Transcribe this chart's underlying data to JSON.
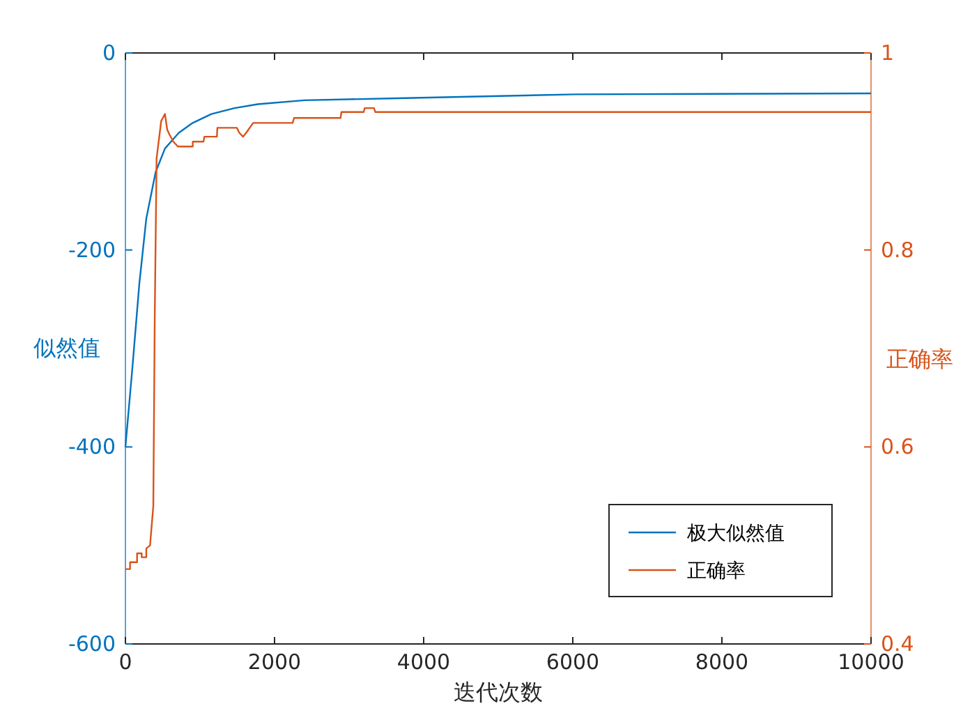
{
  "chart_data": {
    "type": "line",
    "xlabel": "迭代次数",
    "ylabel": "似然值",
    "y2label": "正确率",
    "xlim": [
      0,
      10000
    ],
    "xticks": [
      0,
      2000,
      4000,
      6000,
      8000,
      10000
    ],
    "ylim": [
      -600,
      0
    ],
    "yticks": [
      -600,
      -400,
      -200,
      0
    ],
    "y2lim": [
      0.4,
      1
    ],
    "y2ticks": [
      0.4,
      0.6,
      0.8,
      1
    ],
    "legend": "bottom right",
    "grid": false,
    "series": [
      {
        "name": "极大似然值",
        "color": "#0072bd",
        "axis": "y",
        "x": [
          0,
          93,
          187,
          280,
          405,
          530,
          717,
          903,
          1153,
          1464,
          1776,
          2399,
          3645,
          6037,
          10000
        ],
        "values": [
          -400,
          -320,
          -234,
          -168,
          -121,
          -97,
          -81,
          -71,
          -62,
          -56,
          -52,
          -48,
          -46,
          -42,
          -41
        ]
      },
      {
        "name": "正确率",
        "color": "#d95319",
        "axis": "y2",
        "x": [
          0,
          62,
          62,
          156,
          156,
          218,
          218,
          280,
          280,
          330,
          374,
          393,
          418,
          480,
          530,
          561,
          592,
          642,
          704,
          903,
          903,
          1047,
          1059,
          1227,
          1233,
          1495,
          1527,
          1577,
          1620,
          1713,
          2243,
          2262,
          2885,
          2897,
          3196,
          3209,
          3333,
          3352,
          10000
        ],
        "values": [
          0.476,
          0.476,
          0.483,
          0.483,
          0.492,
          0.492,
          0.488,
          0.488,
          0.497,
          0.5,
          0.54,
          0.73,
          0.893,
          0.931,
          0.938,
          0.922,
          0.917,
          0.91,
          0.905,
          0.905,
          0.91,
          0.91,
          0.915,
          0.915,
          0.924,
          0.924,
          0.919,
          0.915,
          0.919,
          0.929,
          0.929,
          0.934,
          0.934,
          0.94,
          0.94,
          0.944,
          0.944,
          0.94,
          0.94
        ]
      }
    ]
  }
}
